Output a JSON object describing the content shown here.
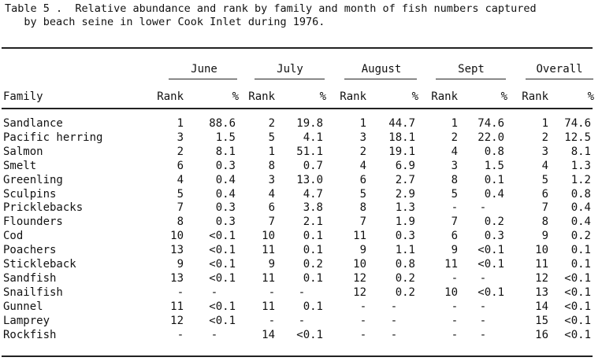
{
  "caption": {
    "line1": "Table 5 .  Relative abundance and rank by family and month of fish numbers captured",
    "line2": "   by beach seine in lower Cook Inlet during 1976."
  },
  "months": [
    "June",
    "July",
    "August",
    "Sept",
    "Overall"
  ],
  "col_family": "Family",
  "col_rank": "Rank",
  "col_pct": "%",
  "rows": [
    {
      "family": "Sandlance",
      "v": [
        "1",
        "88.6",
        "2",
        "19.8",
        "1",
        "44.7",
        "1",
        "74.6",
        "1",
        "74.6"
      ]
    },
    {
      "family": "Pacific herring",
      "v": [
        "3",
        "1.5",
        "5",
        "4.1",
        "3",
        "18.1",
        "2",
        "22.0",
        "2",
        "12.5"
      ]
    },
    {
      "family": "Salmon",
      "v": [
        "2",
        "8.1",
        "1",
        "51.1",
        "2",
        "19.1",
        "4",
        "0.8",
        "3",
        "8.1"
      ]
    },
    {
      "family": "Smelt",
      "v": [
        "6",
        "0.3",
        "8",
        "0.7",
        "4",
        "6.9",
        "3",
        "1.5",
        "4",
        "1.3"
      ]
    },
    {
      "family": "Greenling",
      "v": [
        "4",
        "0.4",
        "3",
        "13.0",
        "6",
        "2.7",
        "8",
        "0.1",
        "5",
        "1.2"
      ]
    },
    {
      "family": "Sculpins",
      "v": [
        "5",
        "0.4",
        "4",
        "4.7",
        "5",
        "2.9",
        "5",
        "0.4",
        "6",
        "0.8"
      ]
    },
    {
      "family": "Pricklebacks",
      "v": [
        "7",
        "0.3",
        "6",
        "3.8",
        "8",
        "1.3",
        "-",
        "-",
        "7",
        "0.4"
      ]
    },
    {
      "family": "Flounders",
      "v": [
        "8",
        "0.3",
        "7",
        "2.1",
        "7",
        "1.9",
        "7",
        "0.2",
        "8",
        "0.4"
      ]
    },
    {
      "family": "Cod",
      "v": [
        "10",
        "<0.1",
        "10",
        "0.1",
        "11",
        "0.3",
        "6",
        "0.3",
        "9",
        "0.2"
      ]
    },
    {
      "family": "Poachers",
      "v": [
        "13",
        "<0.1",
        "11",
        "0.1",
        "9",
        "1.1",
        "9",
        "<0.1",
        "10",
        "0.1"
      ]
    },
    {
      "family": "Stickleback",
      "v": [
        "9",
        "<0.1",
        "9",
        "0.2",
        "10",
        "0.8",
        "11",
        "<0.1",
        "11",
        "0.1"
      ]
    },
    {
      "family": "Sandfish",
      "v": [
        "13",
        "<0.1",
        "11",
        "0.1",
        "12",
        "0.2",
        "-",
        "-",
        "12",
        "<0.1"
      ]
    },
    {
      "family": "Snailfish",
      "v": [
        "-",
        "-",
        "-",
        "-",
        "12",
        "0.2",
        "10",
        "<0.1",
        "13",
        "<0.1"
      ]
    },
    {
      "family": "Gunnel",
      "v": [
        "11",
        "<0.1",
        "11",
        "0.1",
        "-",
        "-",
        "-",
        "-",
        "14",
        "<0.1"
      ]
    },
    {
      "family": "Lamprey",
      "v": [
        "12",
        "<0.1",
        "-",
        "-",
        "-",
        "-",
        "-",
        "-",
        "15",
        "<0.1"
      ]
    },
    {
      "family": "Rockfish",
      "v": [
        "-",
        "-",
        "14",
        "<0.1",
        "-",
        "-",
        "-",
        "-",
        "16",
        "<0.1"
      ]
    }
  ]
}
